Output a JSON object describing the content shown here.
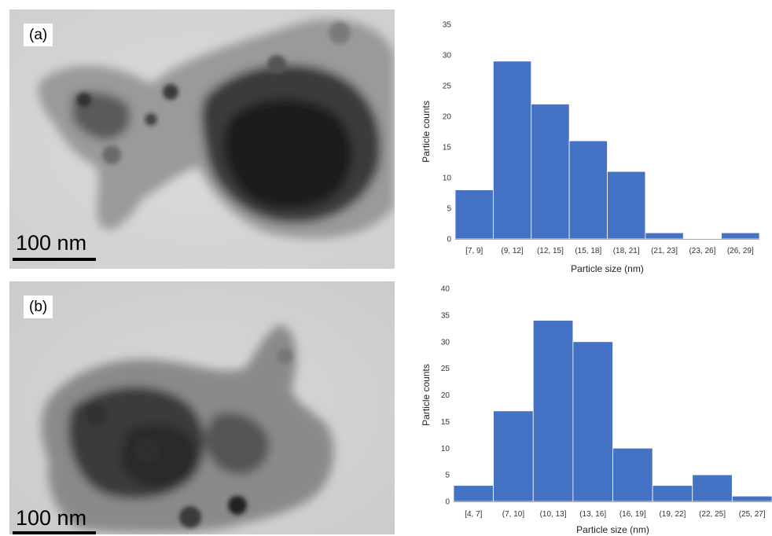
{
  "panels": [
    {
      "label": "(a)",
      "scale_bar": "100 nm"
    },
    {
      "label": "(b)",
      "scale_bar": "100 nm"
    }
  ],
  "colors": {
    "bar": "#4472C4",
    "bar_edge": "#ffffff",
    "axis": "#a6a6a6"
  },
  "chart_data": [
    {
      "type": "bar",
      "categories": [
        "[7, 9]",
        "(9, 12]",
        "(12, 15]",
        "(15, 18]",
        "(18, 21]",
        "(21, 23]",
        "(23, 26]",
        "(26, 29]"
      ],
      "values": [
        8,
        29,
        22,
        16,
        11,
        1,
        0,
        1
      ],
      "title": "",
      "xlabel": "Particle size (nm)",
      "ylabel": "Particle counts",
      "ylim": [
        0,
        35
      ],
      "yticks": [
        0,
        5,
        10,
        15,
        20,
        25,
        30,
        35
      ],
      "grid": false
    },
    {
      "type": "bar",
      "categories": [
        "[4, 7]",
        "(7, 10]",
        "(10, 13]",
        "(13, 16]",
        "(16, 19]",
        "(19, 22]",
        "(22, 25]",
        "(25, 27]"
      ],
      "values": [
        3,
        17,
        34,
        30,
        10,
        3,
        5,
        1
      ],
      "title": "",
      "xlabel": "Particle size (nm)",
      "ylabel": "Particle counts",
      "ylim": [
        0,
        40
      ],
      "yticks": [
        0,
        5,
        10,
        15,
        20,
        25,
        30,
        35,
        40
      ],
      "grid": false
    }
  ]
}
